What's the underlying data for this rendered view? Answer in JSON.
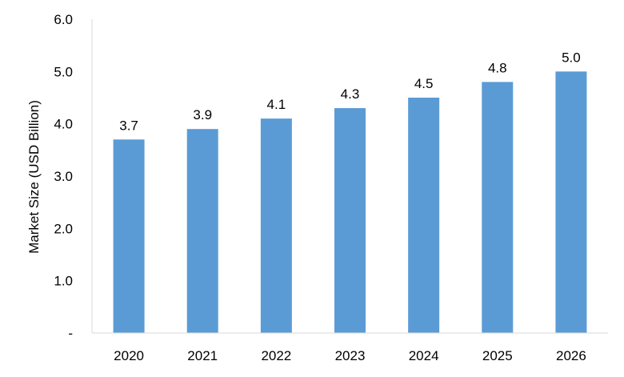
{
  "chart_data": {
    "type": "bar",
    "categories": [
      "2020",
      "2021",
      "2022",
      "2023",
      "2024",
      "2025",
      "2026"
    ],
    "values": [
      3.7,
      3.9,
      4.1,
      4.3,
      4.5,
      4.8,
      5.0
    ],
    "data_labels": [
      "3.7",
      "3.9",
      "4.1",
      "4.3",
      "4.5",
      "4.8",
      "5.0"
    ],
    "title": "",
    "xlabel": "",
    "ylabel": "Market Size (USD Billion)",
    "ylim": [
      0,
      6
    ],
    "yticks": [
      0,
      1,
      2,
      3,
      4,
      5,
      6
    ],
    "ytick_labels": [
      "-",
      "1.0",
      "2.0",
      "3.0",
      "4.0",
      "5.0",
      "6.0"
    ],
    "grid": false,
    "legend": "none",
    "bar_color": "#5b9bd5",
    "axis_color": "#d9d9d9"
  }
}
